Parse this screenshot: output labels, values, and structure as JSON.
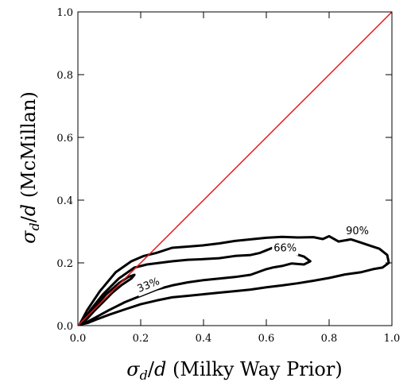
{
  "chart_data": {
    "type": "line",
    "xlabel": "σ_d/d (Milky Way Prior)",
    "ylabel": "σ_d/d (McMillan)",
    "xlim": [
      0.0,
      1.0
    ],
    "ylim": [
      0.0,
      1.0
    ],
    "xticks": [
      "0.0",
      "0.2",
      "0.4",
      "0.6",
      "0.8",
      "1.0"
    ],
    "yticks": [
      "0.0",
      "0.2",
      "0.4",
      "0.6",
      "0.8",
      "1.0"
    ],
    "grid": false,
    "reference_line": {
      "x": [
        0.0,
        1.0
      ],
      "y": [
        0.0,
        1.0
      ],
      "color": "#e8141c"
    },
    "contour_color": "#000000",
    "contours": [
      {
        "label": "90%",
        "label_pos": [
          0.89,
          0.3
        ],
        "label_rotation": 0,
        "points": [
          [
            0.005,
            0.003
          ],
          [
            0.03,
            0.05
          ],
          [
            0.07,
            0.11
          ],
          [
            0.12,
            0.17
          ],
          [
            0.17,
            0.205
          ],
          [
            0.21,
            0.222
          ],
          [
            0.25,
            0.232
          ],
          [
            0.3,
            0.248
          ],
          [
            0.35,
            0.252
          ],
          [
            0.4,
            0.256
          ],
          [
            0.45,
            0.262
          ],
          [
            0.5,
            0.27
          ],
          [
            0.55,
            0.275
          ],
          [
            0.6,
            0.28
          ],
          [
            0.65,
            0.283
          ],
          [
            0.7,
            0.281
          ],
          [
            0.75,
            0.282
          ],
          [
            0.78,
            0.276
          ],
          [
            0.8,
            0.285
          ],
          [
            0.83,
            0.268
          ],
          [
            0.87,
            0.275
          ],
          [
            0.9,
            0.265
          ],
          [
            0.93,
            0.255
          ],
          [
            0.96,
            0.245
          ],
          [
            0.985,
            0.225
          ],
          [
            0.99,
            0.2
          ],
          [
            0.97,
            0.185
          ],
          [
            0.94,
            0.18
          ],
          [
            0.9,
            0.17
          ],
          [
            0.85,
            0.163
          ],
          [
            0.8,
            0.152
          ],
          [
            0.75,
            0.143
          ],
          [
            0.7,
            0.135
          ],
          [
            0.65,
            0.128
          ],
          [
            0.6,
            0.122
          ],
          [
            0.55,
            0.115
          ],
          [
            0.5,
            0.11
          ],
          [
            0.45,
            0.105
          ],
          [
            0.4,
            0.1
          ],
          [
            0.35,
            0.095
          ],
          [
            0.3,
            0.09
          ],
          [
            0.25,
            0.08
          ],
          [
            0.2,
            0.068
          ],
          [
            0.15,
            0.052
          ],
          [
            0.1,
            0.035
          ],
          [
            0.06,
            0.02
          ],
          [
            0.03,
            0.008
          ],
          [
            0.005,
            0.003
          ]
        ]
      },
      {
        "label": "66%",
        "label_pos": [
          0.66,
          0.245
        ],
        "label_rotation": 0,
        "points": [
          [
            0.01,
            0.005
          ],
          [
            0.04,
            0.05
          ],
          [
            0.08,
            0.1
          ],
          [
            0.13,
            0.15
          ],
          [
            0.18,
            0.185
          ],
          [
            0.22,
            0.195
          ],
          [
            0.26,
            0.2
          ],
          [
            0.3,
            0.205
          ],
          [
            0.35,
            0.21
          ],
          [
            0.4,
            0.212
          ],
          [
            0.45,
            0.215
          ],
          [
            0.5,
            0.222
          ],
          [
            0.55,
            0.225
          ],
          [
            0.58,
            0.232
          ],
          [
            0.6,
            0.24
          ],
          [
            0.62,
            0.248
          ],
          [
            0.64,
            0.25
          ],
          [
            0.66,
            0.242
          ],
          [
            0.68,
            0.232
          ],
          [
            0.7,
            0.226
          ],
          [
            0.72,
            0.22
          ],
          [
            0.74,
            0.205
          ],
          [
            0.72,
            0.195
          ],
          [
            0.68,
            0.198
          ],
          [
            0.65,
            0.19
          ],
          [
            0.62,
            0.185
          ],
          [
            0.6,
            0.18
          ],
          [
            0.55,
            0.162
          ],
          [
            0.5,
            0.155
          ],
          [
            0.45,
            0.15
          ],
          [
            0.4,
            0.145
          ],
          [
            0.35,
            0.138
          ],
          [
            0.3,
            0.128
          ],
          [
            0.25,
            0.115
          ],
          [
            0.2,
            0.095
          ],
          [
            0.15,
            0.075
          ],
          [
            0.1,
            0.05
          ],
          [
            0.06,
            0.028
          ],
          [
            0.03,
            0.012
          ],
          [
            0.01,
            0.005
          ]
        ]
      },
      {
        "label": "33%",
        "label_pos": [
          0.225,
          0.128
        ],
        "label_rotation": -22,
        "points": [
          [
            0.015,
            0.01
          ],
          [
            0.05,
            0.055
          ],
          [
            0.09,
            0.1
          ],
          [
            0.13,
            0.135
          ],
          [
            0.16,
            0.155
          ],
          [
            0.18,
            0.162
          ],
          [
            0.17,
            0.15
          ],
          [
            0.14,
            0.13
          ],
          [
            0.11,
            0.105
          ],
          [
            0.08,
            0.075
          ],
          [
            0.05,
            0.045
          ],
          [
            0.03,
            0.022
          ],
          [
            0.015,
            0.01
          ]
        ]
      }
    ]
  }
}
